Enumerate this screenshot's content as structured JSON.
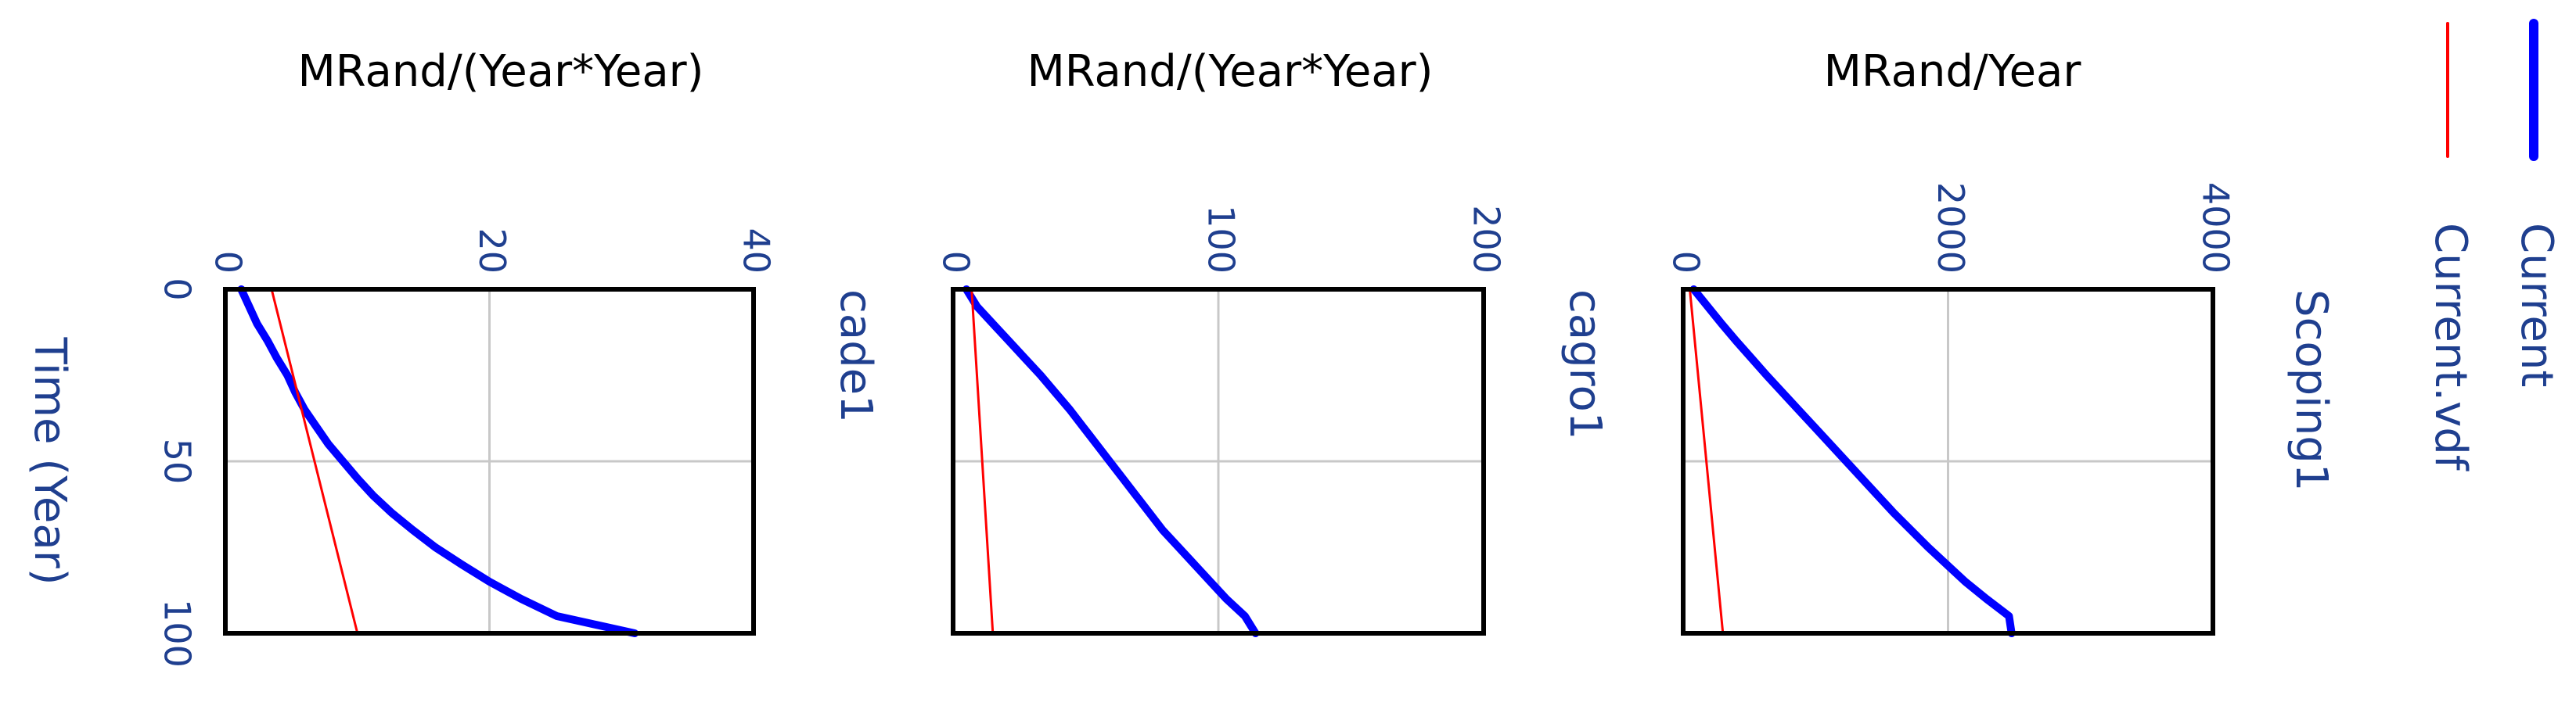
{
  "chart_data": {
    "type": "line",
    "x_axis": {
      "label": "Time (Year)",
      "ticks": [
        0,
        50,
        100
      ],
      "range": [
        0,
        100
      ]
    },
    "legend": {
      "position": "right",
      "entries": [
        {
          "name": "Current",
          "color": "#0000ff"
        },
        {
          "name": "Current.vdf",
          "color": "#ff0000"
        }
      ]
    },
    "panels": [
      {
        "id": "scoping1",
        "ylabel": "MRand/Year",
        "row_label": "Scoping1",
        "ylim": [
          0,
          4000
        ],
        "ticks": [
          0,
          2000,
          4000
        ],
        "series": [
          {
            "name": "Current",
            "color": "#0000ff",
            "x": [
              0,
              5,
              10,
              15,
              20,
              25,
              30,
              35,
              40,
              45,
              50,
              55,
              60,
              65,
              70,
              75,
              80,
              85,
              90,
              95,
              100
            ],
            "y": [
              80,
              185,
              290,
              400,
              515,
              630,
              750,
              870,
              990,
              1110,
              1230,
              1350,
              1470,
              1590,
              1720,
              1850,
              1990,
              2130,
              2290,
              2460,
              2480
            ]
          },
          {
            "name": "Current.vdf",
            "color": "#ff0000",
            "x": [
              0,
              100
            ],
            "y": [
              50,
              300
            ]
          }
        ]
      },
      {
        "id": "cagro1",
        "ylabel": "MRand/(Year*Year)",
        "row_label": "cagro1",
        "ylim": [
          0,
          200
        ],
        "ticks": [
          0,
          100,
          200
        ],
        "series": [
          {
            "name": "Current",
            "color": "#0000ff",
            "x": [
              0,
              5,
              10,
              15,
              20,
              25,
              30,
              35,
              40,
              45,
              50,
              55,
              60,
              65,
              70,
              75,
              80,
              85,
              90,
              95,
              100
            ],
            "y": [
              5,
              9,
              15,
              21,
              27,
              33,
              38.5,
              44,
              49,
              54,
              59,
              64,
              69,
              74,
              79,
              85,
              91,
              97,
              103,
              110,
              114
            ]
          },
          {
            "name": "Current.vdf",
            "color": "#ff0000",
            "x": [
              0,
              100
            ],
            "y": [
              7,
              15
            ]
          }
        ]
      },
      {
        "id": "cade1",
        "ylabel": "MRand/(Year*Year)",
        "row_label": "cade1",
        "ylim": [
          0,
          40
        ],
        "ticks": [
          0,
          20,
          40
        ],
        "series": [
          {
            "name": "Current",
            "color": "#0000ff",
            "x": [
              0,
              5,
              10,
              15,
              20,
              25,
              30,
              35,
              40,
              45,
              50,
              55,
              60,
              65,
              70,
              75,
              80,
              85,
              90,
              95,
              100
            ],
            "y": [
              1.2,
              1.8,
              2.4,
              3.2,
              3.9,
              4.7,
              5.3,
              6.0,
              6.9,
              7.8,
              8.9,
              10.0,
              11.2,
              12.6,
              14.2,
              15.9,
              17.9,
              20.0,
              22.4,
              25.1,
              31
            ]
          },
          {
            "name": "Current.vdf",
            "color": "#ff0000",
            "x": [
              0,
              100
            ],
            "y": [
              3.5,
              10
            ]
          }
        ]
      }
    ]
  }
}
